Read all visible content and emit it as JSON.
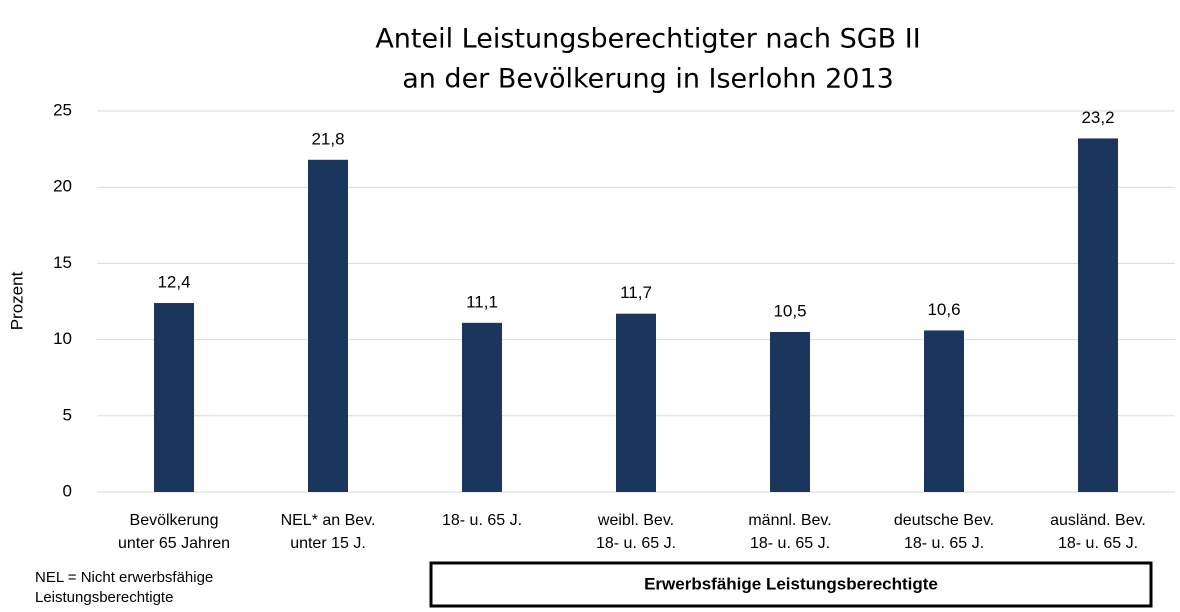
{
  "chart_data": {
    "type": "bar",
    "title": [
      "Anteil Leistungsberechtigter nach SGB II",
      "an der Bevölkerung in Iserlohn 2013"
    ],
    "y_label": "Prozent",
    "categories": [
      [
        "Bevölkerung",
        "unter 65 Jahren"
      ],
      [
        "NEL* an Bev.",
        "unter 15 J."
      ],
      [
        "18- u. 65 J."
      ],
      [
        "weibl. Bev.",
        "18- u. 65 J."
      ],
      [
        "männl. Bev.",
        "18- u. 65 J."
      ],
      [
        "deutsche Bev.",
        "18- u. 65 J."
      ],
      [
        "ausländ. Bev.",
        "18- u. 65 J."
      ]
    ],
    "values": [
      12.4,
      21.8,
      11.1,
      11.7,
      10.5,
      10.6,
      23.2
    ],
    "value_labels": [
      "12,4",
      "21,8",
      "11,1",
      "11,7",
      "10,5",
      "10,6",
      "23,2"
    ],
    "color": "#1b365d",
    "ylim": [
      0,
      25
    ],
    "yticks": [
      0,
      5,
      10,
      15,
      20,
      25
    ],
    "grid": true,
    "footnote": [
      "NEL = Nicht erwerbsfähige",
      "Leistungsberechtigte"
    ],
    "annotation": "Erwerbsfähige Leistungsberechtigte"
  }
}
